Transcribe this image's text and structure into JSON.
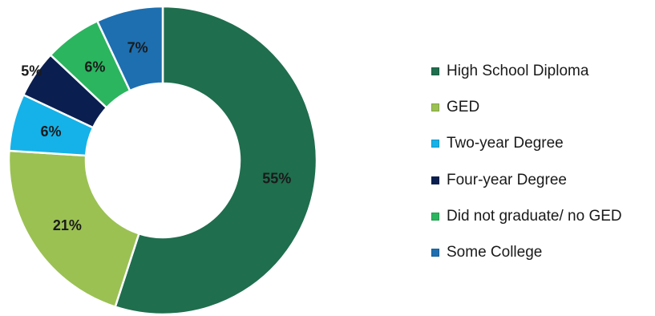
{
  "chart_data": {
    "type": "pie",
    "variant": "donut",
    "title": "",
    "legend_position": "right",
    "slices": [
      {
        "label": "High School Diploma",
        "value": 55,
        "display": "55%",
        "color": "#1f6e4e"
      },
      {
        "label": "GED",
        "value": 21,
        "display": "21%",
        "color": "#9bc153"
      },
      {
        "label": "Two-year Degree",
        "value": 6,
        "display": "6%",
        "color": "#14b2e8"
      },
      {
        "label": "Four-year Degree",
        "value": 5,
        "display": "5%",
        "color": "#0a1f50"
      },
      {
        "label": "Did not graduate/ no GED",
        "value": 6,
        "display": "6%",
        "color": "#2bb55f"
      },
      {
        "label": "Some College",
        "value": 7,
        "display": "7%",
        "color": "#1d6fb0"
      }
    ]
  }
}
